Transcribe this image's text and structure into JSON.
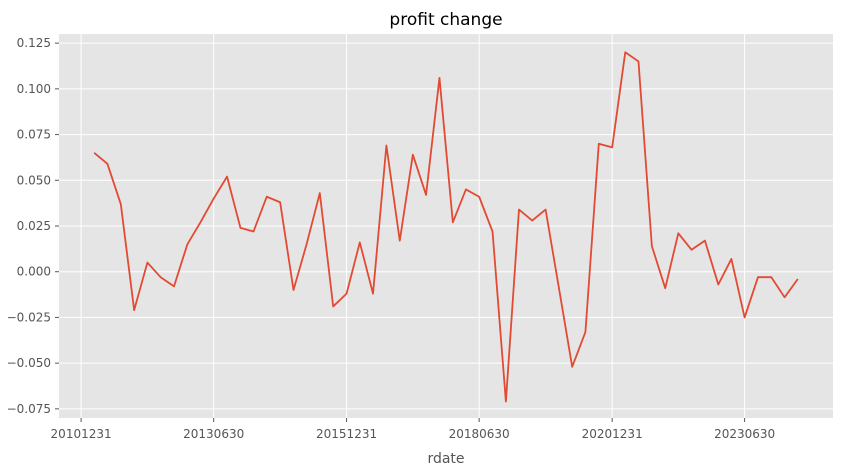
{
  "chart_data": {
    "type": "line",
    "title": "profit change",
    "xlabel": "rdate",
    "ylabel": "",
    "grid": true,
    "ylim": [
      -0.08,
      0.13
    ],
    "y_ticks": [
      -0.075,
      -0.05,
      -0.025,
      0.0,
      0.025,
      0.05,
      0.075,
      0.1,
      0.125
    ],
    "y_tick_labels": [
      "−0.075",
      "−0.050",
      "−0.025",
      "0.000",
      "0.025",
      "0.050",
      "0.075",
      "0.100",
      "0.125"
    ],
    "x_tick_labels": [
      "20101231",
      "20130630",
      "20151231",
      "20180630",
      "20201231",
      "20230630"
    ],
    "line_color": "#E24A33",
    "background_color": "#E5E5E5",
    "grid_color": "#FFFFFF",
    "series": [
      {
        "x": [
          "20110331",
          "20110630",
          "20110930",
          "20111231",
          "20120331",
          "20120630",
          "20120930",
          "20121231",
          "20130331",
          "20130630",
          "20130930",
          "20131231",
          "20140331",
          "20140630",
          "20140930",
          "20141231",
          "20150331",
          "20150630",
          "20150930",
          "20151231",
          "20160331",
          "20160630",
          "20160930",
          "20161231",
          "20170331",
          "20170630",
          "20170930",
          "20171231",
          "20180331",
          "20180630",
          "20180930",
          "20181231",
          "20190331",
          "20190630",
          "20190930",
          "20191231",
          "20200331",
          "20200630",
          "20200930",
          "20201231",
          "20210331",
          "20210630",
          "20210930",
          "20211231",
          "20220331",
          "20220630",
          "20220930",
          "20221231",
          "20230331",
          "20230630",
          "20230930",
          "20231231",
          "20240331",
          "20240630"
        ],
        "values": [
          0.065,
          0.059,
          0.037,
          -0.021,
          0.005,
          -0.003,
          -0.008,
          0.015,
          0.027,
          0.04,
          0.052,
          0.024,
          0.022,
          0.041,
          0.038,
          -0.01,
          0.015,
          0.043,
          -0.019,
          -0.012,
          0.016,
          -0.012,
          0.069,
          0.017,
          0.064,
          0.042,
          0.106,
          0.027,
          0.045,
          0.041,
          0.022,
          -0.071,
          0.034,
          0.028,
          0.034,
          -0.009,
          -0.052,
          -0.033,
          0.07,
          0.068,
          0.12,
          0.115,
          0.014,
          -0.009,
          0.021,
          0.012,
          0.017,
          -0.007,
          0.007,
          -0.025,
          -0.003,
          -0.003,
          -0.014,
          -0.004
        ]
      }
    ]
  }
}
